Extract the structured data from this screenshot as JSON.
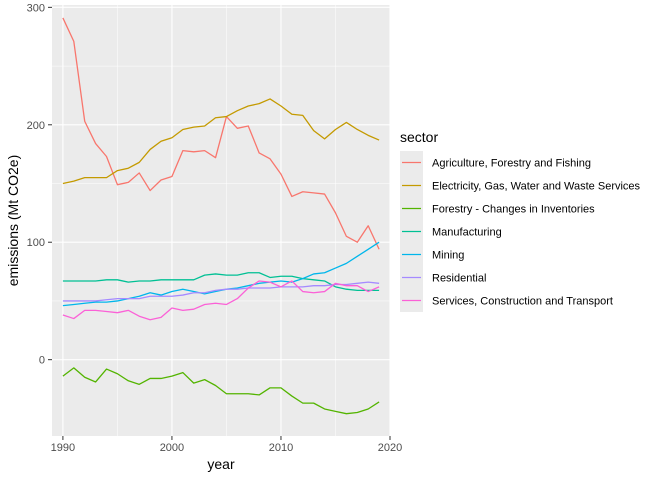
{
  "chart_data": {
    "type": "line",
    "xlabel": "year",
    "ylabel": "emissions (Mt CO2e)",
    "xlim": [
      1989,
      2020
    ],
    "ylim": [
      -65,
      302
    ],
    "x_ticks": [
      1990,
      2000,
      2010,
      2020
    ],
    "y_ticks": [
      0,
      100,
      200,
      300
    ],
    "grid": true,
    "background": "#EBEBEB",
    "legend_title": "sector",
    "legend_position": "right",
    "x": [
      1990,
      1991,
      1992,
      1993,
      1994,
      1995,
      1996,
      1997,
      1998,
      1999,
      2000,
      2001,
      2002,
      2003,
      2004,
      2005,
      2006,
      2007,
      2008,
      2009,
      2010,
      2011,
      2012,
      2013,
      2014,
      2015,
      2016,
      2017,
      2018,
      2019
    ],
    "series": [
      {
        "name": "Agriculture, Forestry and Fishing",
        "color": "#F8766D",
        "values": [
          291,
          271,
          203,
          184,
          173,
          149,
          151,
          159,
          144,
          153,
          156,
          178,
          177,
          178,
          172,
          207,
          197,
          199,
          176,
          171,
          158,
          139,
          143,
          142,
          141,
          125,
          105,
          100,
          114,
          94
        ]
      },
      {
        "name": "Electricity, Gas, Water and Waste Services",
        "color": "#C49A00",
        "values": [
          150,
          152,
          155,
          155,
          155,
          161,
          163,
          168,
          179,
          186,
          189,
          196,
          198,
          199,
          206,
          207,
          212,
          216,
          218,
          222,
          216,
          209,
          208,
          195,
          188,
          196,
          202,
          196,
          191,
          187
        ]
      },
      {
        "name": "Forestry - Changes in Inventories",
        "color": "#53B400",
        "values": [
          -14,
          -7,
          -15,
          -19,
          -8,
          -12,
          -18,
          -21,
          -16,
          -16,
          -14,
          -11,
          -20,
          -17,
          -22,
          -29,
          -29,
          -29,
          -30,
          -24,
          -24,
          -31,
          -37,
          -37,
          -42,
          -44,
          -46,
          -45,
          -42,
          -36
        ]
      },
      {
        "name": "Manufacturing",
        "color": "#00C094",
        "values": [
          67,
          67,
          67,
          67,
          68,
          68,
          66,
          67,
          67,
          68,
          68,
          68,
          68,
          72,
          73,
          72,
          72,
          74,
          74,
          70,
          71,
          71,
          69,
          68,
          67,
          62,
          60,
          59,
          59,
          59
        ]
      },
      {
        "name": "Mining",
        "color": "#00B6EB",
        "values": [
          46,
          47,
          48,
          49,
          49,
          50,
          52,
          54,
          57,
          55,
          58,
          60,
          58,
          56,
          58,
          60,
          61,
          63,
          65,
          66,
          67,
          66,
          69,
          73,
          74,
          78,
          82,
          88,
          94,
          100
        ]
      },
      {
        "name": "Residential",
        "color": "#A58AFF",
        "values": [
          50,
          50,
          50,
          50,
          51,
          52,
          52,
          52,
          54,
          54,
          54,
          55,
          57,
          57,
          59,
          60,
          60,
          61,
          61,
          61,
          62,
          62,
          62,
          63,
          63,
          64,
          64,
          65,
          66,
          65
        ]
      },
      {
        "name": "Services, Construction and Transport",
        "color": "#FB61D7",
        "values": [
          38,
          35,
          42,
          42,
          41,
          40,
          42,
          37,
          34,
          36,
          44,
          42,
          43,
          47,
          48,
          47,
          52,
          61,
          67,
          66,
          62,
          67,
          58,
          57,
          58,
          65,
          63,
          63,
          58,
          62
        ]
      }
    ]
  }
}
